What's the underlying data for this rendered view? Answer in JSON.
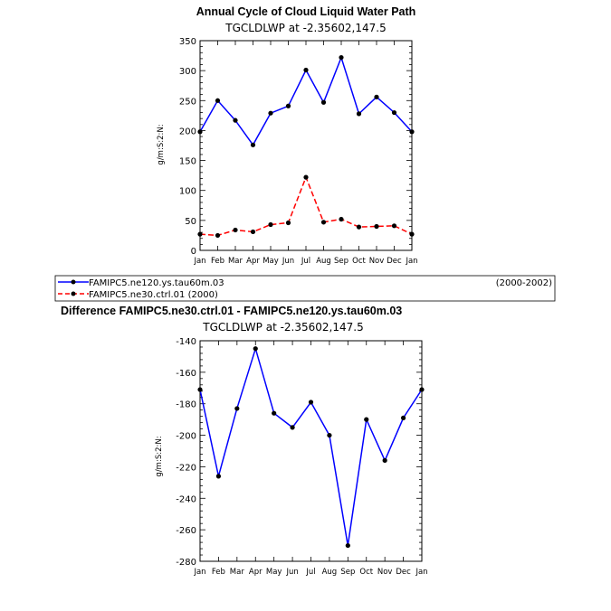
{
  "chart_data": [
    {
      "type": "line",
      "title": "Annual Cycle of Cloud Liquid Water Path",
      "subtitle": "TGCLDLWP  at  -2.35602,147.5",
      "ylabel": "g/m:S:2:N:",
      "xlabel": "",
      "ylim": [
        0,
        350
      ],
      "yticks": [
        "0",
        "50",
        "100",
        "150",
        "200",
        "250",
        "300",
        "350"
      ],
      "categories": [
        "Jan",
        "Feb",
        "Mar",
        "Apr",
        "May",
        "Jun",
        "Jul",
        "Aug",
        "Sep",
        "Oct",
        "Nov",
        "Dec",
        "Jan"
      ],
      "series": [
        {
          "name": "FAMIPC5.ne120.ys.tau60m.03",
          "color": "#0000ff",
          "dash": "solid",
          "values": [
            198,
            250,
            217,
            176,
            229,
            241,
            301,
            247,
            322,
            228,
            256,
            230,
            198
          ]
        },
        {
          "name": "FAMIPC5.ne30.ctrl.01 (2000)",
          "color": "#ff0000",
          "dash": "dashed",
          "values": [
            27,
            25,
            34,
            31,
            43,
            46,
            122,
            47,
            52,
            39,
            40,
            41,
            27
          ]
        }
      ],
      "legend": {
        "placement": "below",
        "entries": [
          "FAMIPC5.ne120.ys.tau60m.03",
          "FAMIPC5.ne30.ctrl.01 (2000)"
        ],
        "period": "(2000-2002)"
      },
      "grid": false
    },
    {
      "type": "line",
      "title": "Difference FAMIPC5.ne30.ctrl.01 - FAMIPC5.ne120.ys.tau60m.03",
      "subtitle": "TGCLDLWP  at  -2.35602,147.5",
      "ylabel": "g/m:S:2:N:",
      "xlabel": "",
      "ylim": [
        -280,
        -140
      ],
      "yticks": [
        "-280",
        "-260",
        "-240",
        "-220",
        "-200",
        "-180",
        "-160",
        "-140"
      ],
      "categories": [
        "Jan",
        "Feb",
        "Mar",
        "Apr",
        "May",
        "Jun",
        "Jul",
        "Aug",
        "Sep",
        "Oct",
        "Nov",
        "Dec",
        "Jan"
      ],
      "series": [
        {
          "color": "#0000ff",
          "dash": "solid",
          "values": [
            -171,
            -226,
            -183,
            -145,
            -186,
            -195,
            -179,
            -200,
            -270,
            -190,
            -216,
            -189,
            -171
          ]
        }
      ],
      "grid": false
    }
  ]
}
